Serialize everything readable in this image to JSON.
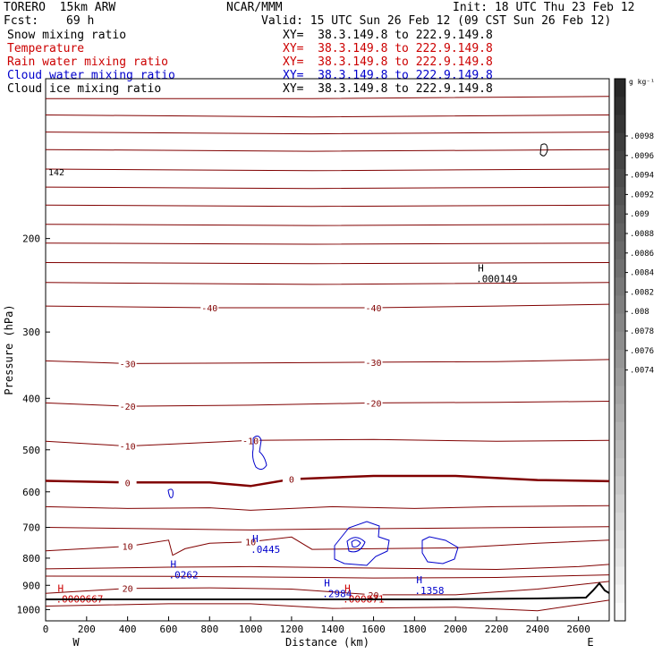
{
  "header": {
    "model": "TORERO  15km ARW",
    "org": "NCAR/MMM",
    "init": "Init: 18 UTC Thu 23 Feb 12",
    "fcst_label": "Fcst:",
    "fcst_value": "69 h",
    "valid": "Valid: 15 UTC Sun 26 Feb 12 (09 CST Sun 26 Feb 12)"
  },
  "fields": [
    {
      "name": "Snow mixing ratio",
      "color": "#000000",
      "xy": "XY=  38.3.149.8 to 222.9.149.8",
      "xy_color": "#000000"
    },
    {
      "name": "Temperature",
      "color": "#cc0000",
      "xy": "XY=  38.3.149.8 to 222.9.149.8",
      "xy_color": "#cc0000"
    },
    {
      "name": "Rain water mixing ratio",
      "color": "#cc0000",
      "xy": "XY=  38.3.149.8 to 222.9.149.8",
      "xy_color": "#cc0000"
    },
    {
      "name": "Cloud water mixing ratio",
      "color": "#0000cc",
      "xy": "XY=  38.3.149.8 to 222.9.149.8",
      "xy_color": "#0000cc"
    },
    {
      "name": "Cloud ice mixing ratio",
      "color": "#000000",
      "xy": "XY=  38.3.149.8 to 222.9.149.8",
      "xy_color": "#000000"
    }
  ],
  "chart_data": {
    "type": "contour",
    "xlabel": "Distance (km)",
    "ylabel": "Pressure (hPa)",
    "xlim": [
      0,
      2750
    ],
    "ylim": [
      1050,
      100
    ],
    "x_ticks": [
      0,
      200,
      400,
      600,
      800,
      1000,
      1200,
      1400,
      1600,
      1800,
      2000,
      2200,
      2400,
      2600
    ],
    "y_ticks": [
      200,
      300,
      400,
      500,
      600,
      700,
      800,
      900,
      1000
    ],
    "y_scale": "log",
    "x_end_labels": {
      "left": "W",
      "right": "E"
    },
    "temperature_isotherms": [
      {
        "label": "0",
        "points": [
          [
            0,
            572
          ],
          [
            400,
            576
          ],
          [
            800,
            576
          ],
          [
            1000,
            585
          ],
          [
            1200,
            568
          ],
          [
            1600,
            560
          ],
          [
            2000,
            560
          ],
          [
            2400,
            570
          ],
          [
            2750,
            573
          ]
        ],
        "bold": true
      },
      {
        "label": "-10",
        "points": [
          [
            0,
            482
          ],
          [
            400,
            492
          ],
          [
            700,
            486
          ],
          [
            1000,
            480
          ],
          [
            1600,
            478
          ],
          [
            2200,
            482
          ],
          [
            2750,
            480
          ]
        ]
      },
      {
        "label": "-20",
        "points": [
          [
            0,
            408
          ],
          [
            400,
            414
          ],
          [
            1000,
            412
          ],
          [
            1600,
            408
          ],
          [
            2200,
            407
          ],
          [
            2750,
            405
          ]
        ]
      },
      {
        "label": "-30",
        "points": [
          [
            0,
            340
          ],
          [
            400,
            344
          ],
          [
            1000,
            343
          ],
          [
            1600,
            342
          ],
          [
            2200,
            341
          ],
          [
            2750,
            338
          ]
        ]
      },
      {
        "label": "-40",
        "points": [
          [
            0,
            268
          ],
          [
            800,
            270
          ],
          [
            1600,
            270
          ],
          [
            2200,
            268
          ],
          [
            2750,
            266
          ]
        ]
      },
      {
        "label": "",
        "points": [
          [
            0,
            242
          ],
          [
            1300,
            244
          ],
          [
            2750,
            242
          ]
        ]
      },
      {
        "label": "",
        "points": [
          [
            0,
            222
          ],
          [
            1300,
            223
          ],
          [
            2750,
            222
          ]
        ]
      },
      {
        "label": "",
        "points": [
          [
            0,
            204
          ],
          [
            1300,
            205
          ],
          [
            2750,
            204
          ]
        ]
      },
      {
        "label": "",
        "points": [
          [
            0,
            188
          ],
          [
            1300,
            189
          ],
          [
            2750,
            188
          ]
        ]
      },
      {
        "label": "",
        "points": [
          [
            0,
            173
          ],
          [
            1300,
            174
          ],
          [
            2750,
            173
          ]
        ]
      },
      {
        "label": "",
        "points": [
          [
            0,
            160
          ],
          [
            1300,
            161
          ],
          [
            2750,
            160
          ]
        ]
      },
      {
        "label": "",
        "points": [
          [
            0,
            148
          ],
          [
            1300,
            149
          ],
          [
            2750,
            148
          ]
        ]
      },
      {
        "label": "",
        "points": [
          [
            0,
            136
          ],
          [
            1300,
            137
          ],
          [
            2750,
            136
          ]
        ]
      },
      {
        "label": "",
        "points": [
          [
            0,
            126
          ],
          [
            1300,
            127
          ],
          [
            2750,
            126
          ]
        ]
      },
      {
        "label": "",
        "points": [
          [
            0,
            117
          ],
          [
            1300,
            118
          ],
          [
            2750,
            117
          ]
        ]
      },
      {
        "label": "",
        "points": [
          [
            0,
            109
          ],
          [
            1300,
            109
          ],
          [
            2750,
            108
          ]
        ]
      },
      {
        "label": "",
        "points": [
          [
            0,
            640
          ],
          [
            400,
            645
          ],
          [
            800,
            643
          ],
          [
            1000,
            650
          ],
          [
            1400,
            640
          ],
          [
            1800,
            645
          ],
          [
            2200,
            640
          ],
          [
            2750,
            637
          ]
        ]
      },
      {
        "label": "",
        "points": [
          [
            0,
            700
          ],
          [
            600,
            705
          ],
          [
            1000,
            708
          ],
          [
            1400,
            705
          ],
          [
            2000,
            702
          ],
          [
            2750,
            698
          ]
        ]
      },
      {
        "label": "10",
        "points": [
          [
            0,
            775
          ],
          [
            400,
            760
          ],
          [
            600,
            740
          ],
          [
            620,
            790
          ],
          [
            680,
            768
          ],
          [
            800,
            750
          ],
          [
            1000,
            745
          ],
          [
            1200,
            730
          ],
          [
            1300,
            770
          ],
          [
            1600,
            768
          ],
          [
            2000,
            765
          ],
          [
            2400,
            750
          ],
          [
            2750,
            740
          ]
        ]
      },
      {
        "label": "",
        "points": [
          [
            0,
            838
          ],
          [
            600,
            832
          ],
          [
            1000,
            830
          ],
          [
            1600,
            835
          ],
          [
            2200,
            840
          ],
          [
            2600,
            830
          ],
          [
            2750,
            822
          ]
        ]
      },
      {
        "label": "",
        "points": [
          [
            0,
            865
          ],
          [
            600,
            866
          ],
          [
            1000,
            868
          ],
          [
            1600,
            872
          ],
          [
            2200,
            870
          ],
          [
            2750,
            860
          ]
        ]
      },
      {
        "label": "20",
        "points": [
          [
            0,
            932
          ],
          [
            400,
            912
          ],
          [
            800,
            910
          ],
          [
            1200,
            915
          ],
          [
            1600,
            938
          ],
          [
            2000,
            938
          ],
          [
            2400,
            915
          ],
          [
            2750,
            885
          ]
        ]
      },
      {
        "label": "",
        "points": [
          [
            0,
            985
          ],
          [
            600,
            975
          ],
          [
            1000,
            975
          ],
          [
            1400,
            995
          ],
          [
            2000,
            990
          ],
          [
            2400,
            1005
          ],
          [
            2750,
            960
          ]
        ]
      }
    ],
    "extrema": [
      {
        "field": "Rain water mixing ratio",
        "type": "H",
        "value": ".0000667",
        "x": 50,
        "p": 955
      },
      {
        "field": "Cloud water mixing ratio",
        "type": "H",
        "value": ".0262",
        "x": 600,
        "p": 860
      },
      {
        "field": "Cloud water mixing ratio",
        "type": "H",
        "value": ".0445",
        "x": 1000,
        "p": 770
      },
      {
        "field": "Cloud water mixing ratio",
        "type": "H",
        "value": ".2984",
        "x": 1350,
        "p": 932
      },
      {
        "field": "Rain water mixing ratio",
        "type": "H",
        "value": ".000871",
        "x": 1450,
        "p": 955
      },
      {
        "field": "Cloud water mixing ratio",
        "type": "H",
        "value": ".1358",
        "x": 1800,
        "p": 920
      },
      {
        "field": "Snow mixing ratio",
        "type": "H",
        "value": ".000149",
        "x": 2100,
        "p": 238
      }
    ],
    "corner_label": "142",
    "colorbar": {
      "unit": "g kg⁻¹",
      "ticks": [
        ".0098",
        ".0096",
        ".0094",
        ".0092",
        ".009",
        ".0088",
        ".0086",
        ".0084",
        ".0082",
        ".008",
        ".0078",
        ".0076",
        ".0074"
      ]
    }
  }
}
